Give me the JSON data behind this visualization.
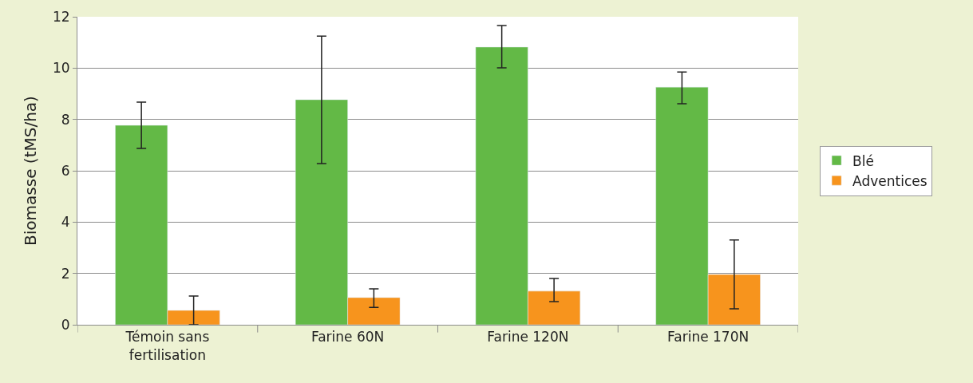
{
  "chart_data": {
    "type": "bar",
    "ylabel": "Biomasse (tMS/ha)",
    "categories": [
      "Témoin sans\nfertilisation",
      "Farine 60N",
      "Farine 120N",
      "Farine 170N"
    ],
    "series": [
      {
        "name": "Blé",
        "color": "#63b946",
        "values": [
          7.77,
          8.77,
          10.82,
          9.26
        ],
        "errors": [
          [
            6.87,
            8.67
          ],
          [
            6.28,
            11.25
          ],
          [
            10.01,
            11.66
          ],
          [
            8.61,
            9.85
          ]
        ]
      },
      {
        "name": "Adventices",
        "color": "#f7941d",
        "values": [
          0.56,
          1.06,
          1.31,
          1.96
        ],
        "errors": [
          [
            0,
            1.12
          ],
          [
            0.68,
            1.4
          ],
          [
            0.9,
            1.8
          ],
          [
            0.62,
            3.3
          ]
        ]
      }
    ],
    "ylim": [
      0,
      12
    ],
    "yticks": [
      0,
      2,
      4,
      6,
      8,
      10,
      12
    ],
    "grid": "y",
    "legend": "right"
  }
}
